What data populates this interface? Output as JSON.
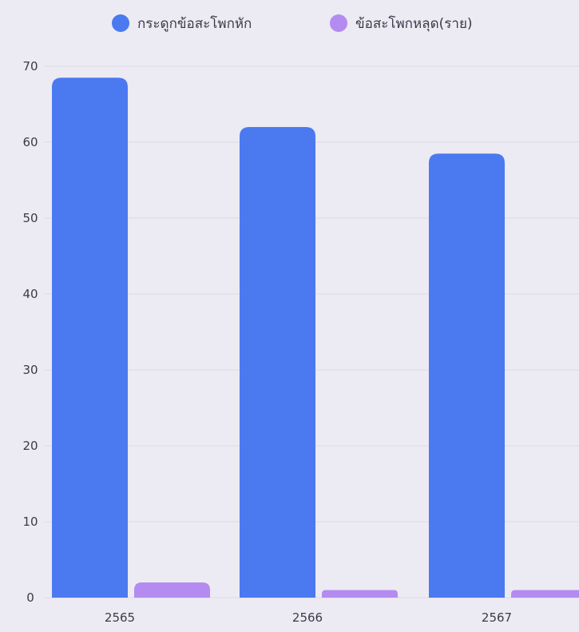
{
  "chart_data": {
    "type": "bar",
    "categories": [
      "2565",
      "2566",
      "2567"
    ],
    "series": [
      {
        "name": "กระดูกข้อสะโพกหัก",
        "values": [
          68.5,
          62,
          58.5
        ],
        "color": "#4b79f0"
      },
      {
        "name": "ข้อสะโพกหลุด(ราย)",
        "values": [
          2,
          1,
          1
        ],
        "color": "#b48bf0"
      }
    ],
    "yticks": [
      0,
      10,
      20,
      30,
      40,
      50,
      60,
      70
    ],
    "ylim": [
      0,
      70
    ],
    "grid": true,
    "legend_position": "top-center",
    "title": "",
    "xlabel": "",
    "ylabel": ""
  }
}
